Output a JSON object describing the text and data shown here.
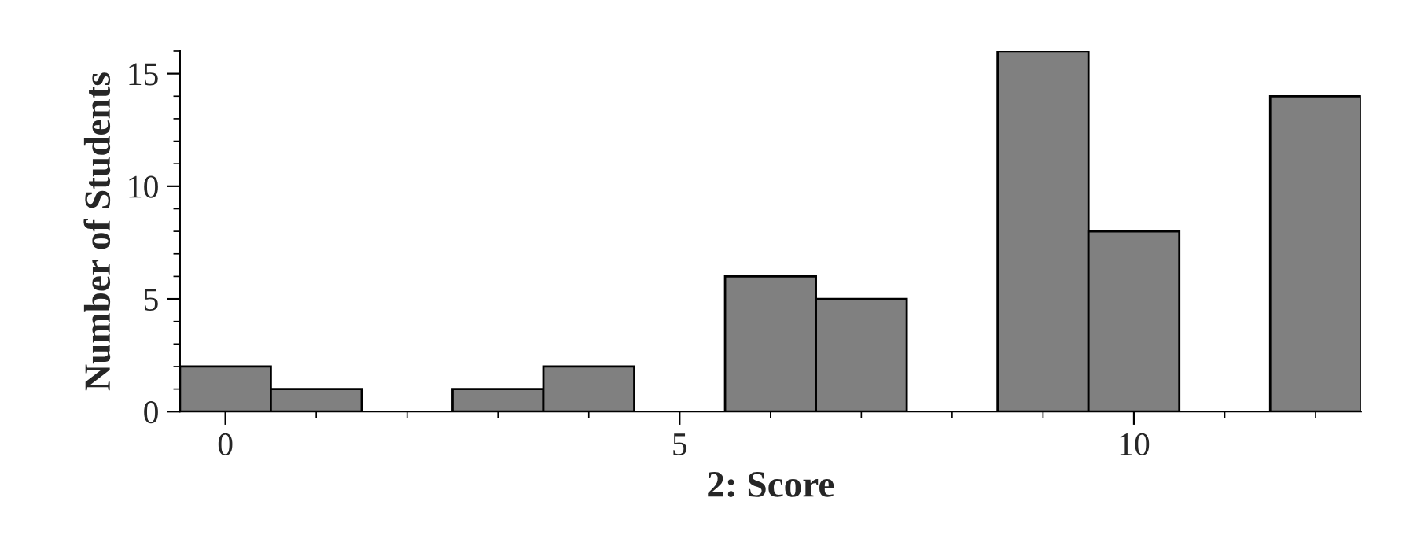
{
  "chart_data": {
    "type": "histogram",
    "xlabel": "2: Score",
    "ylabel": "Number of Students",
    "bins": [
      -0.5,
      0.5,
      1.5,
      2.5,
      3.5,
      4.5,
      5.5,
      6.5,
      7.5,
      8.5,
      9.5,
      10.5,
      11.5,
      12.5
    ],
    "values": [
      2,
      1,
      0,
      1,
      2,
      0,
      6,
      5,
      0,
      16,
      8,
      0,
      14
    ],
    "color": "#808080",
    "xlim": [
      -0.5,
      12.5
    ],
    "xticks": [
      0,
      5,
      10
    ],
    "ylim": [
      0,
      16
    ],
    "yticks": [
      0,
      5,
      10,
      15
    ],
    "grid": false
  }
}
